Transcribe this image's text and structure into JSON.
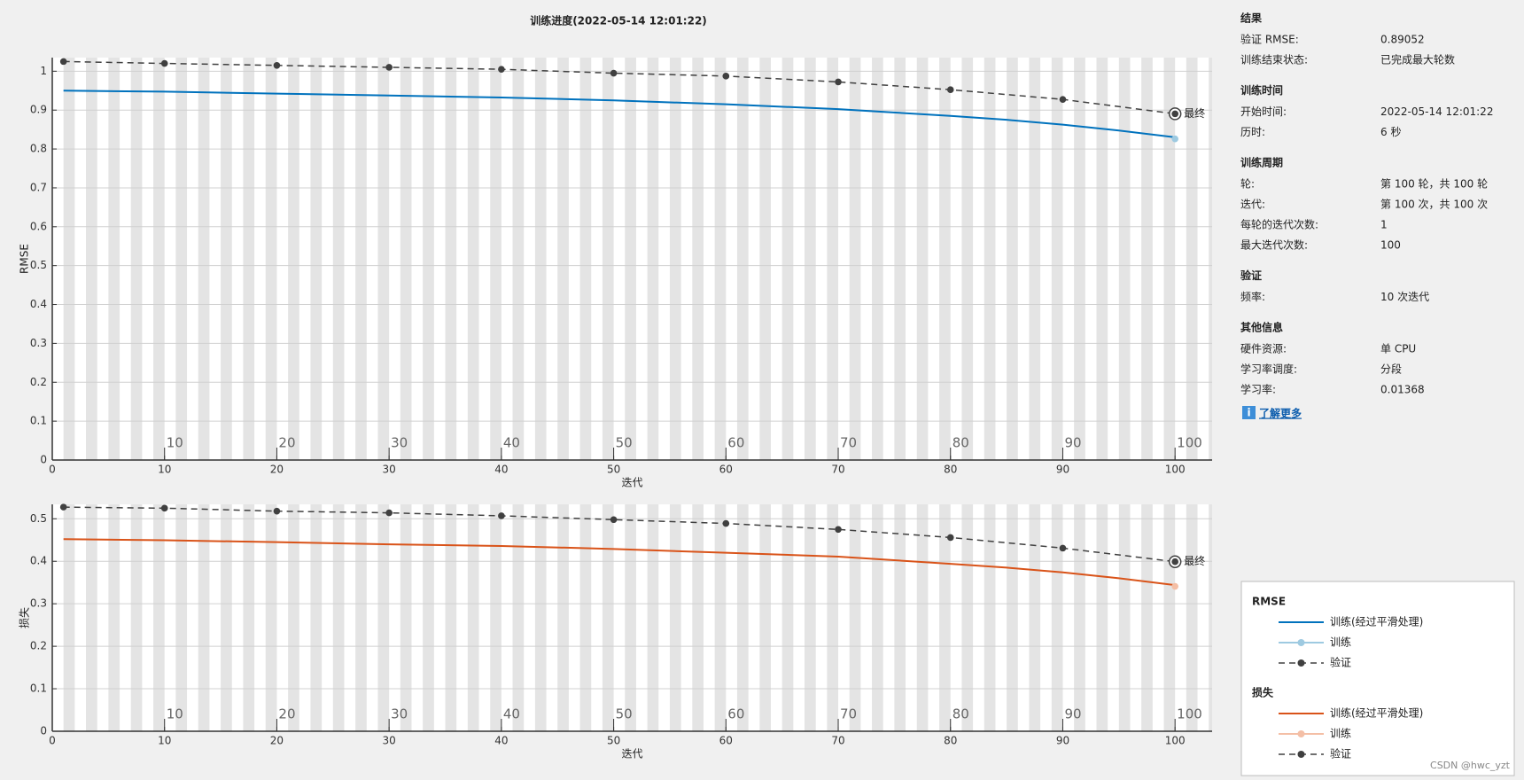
{
  "title": "训练进度(2022-05-14 12:01:22)",
  "chart_data": [
    {
      "type": "line",
      "xlabel": "迭代",
      "ylabel": "RMSE",
      "xlim": [
        0,
        103.3
      ],
      "ylim": [
        0,
        1.035
      ],
      "xticks": [
        0,
        10,
        20,
        30,
        40,
        50,
        60,
        70,
        80,
        90,
        100
      ],
      "yticks": [
        0,
        0.1,
        0.2,
        0.3,
        0.4,
        0.5,
        0.6,
        0.7,
        0.8,
        0.9,
        1
      ],
      "epoch_ticks": [
        10,
        20,
        30,
        40,
        50,
        60,
        70,
        80,
        90,
        100
      ],
      "grid": true,
      "final_label": "最终",
      "series": [
        {
          "name": "训练(经过平滑处理)",
          "color": "#0072bd",
          "line_style": "solid",
          "markers": false,
          "x": [
            1,
            10,
            20,
            30,
            40,
            50,
            60,
            70,
            80,
            85,
            90,
            95,
            100
          ],
          "values": [
            0.95,
            0.9475,
            0.9425,
            0.9375,
            0.9325,
            0.925,
            0.915,
            0.9025,
            0.885,
            0.875,
            0.8625,
            0.8475,
            0.83
          ]
        },
        {
          "name": "训练",
          "color": "#9ecae1",
          "line_style": "solid",
          "markers": true,
          "x": [
            100
          ],
          "values": [
            0.826
          ]
        },
        {
          "name": "验证",
          "color": "#404040",
          "line_style": "dashed",
          "markers": true,
          "x": [
            1,
            10,
            20,
            30,
            40,
            50,
            60,
            70,
            80,
            90,
            100
          ],
          "values": [
            1.025,
            1.02,
            1.015,
            1.01,
            1.005,
            0.995,
            0.9875,
            0.9725,
            0.9525,
            0.9275,
            0.89052
          ]
        }
      ]
    },
    {
      "type": "line",
      "xlabel": "迭代",
      "ylabel": "损失",
      "xlim": [
        0,
        103.3
      ],
      "ylim": [
        0,
        0.534
      ],
      "xticks": [
        0,
        10,
        20,
        30,
        40,
        50,
        60,
        70,
        80,
        90,
        100
      ],
      "yticks": [
        0,
        0.1,
        0.2,
        0.3,
        0.4,
        0.5
      ],
      "epoch_ticks": [
        10,
        20,
        30,
        40,
        50,
        60,
        70,
        80,
        90,
        100
      ],
      "grid": true,
      "final_label": "最终",
      "series": [
        {
          "name": "训练(经过平滑处理)",
          "color": "#d95319",
          "line_style": "solid",
          "markers": false,
          "x": [
            1,
            10,
            20,
            30,
            40,
            50,
            60,
            70,
            80,
            85,
            90,
            95,
            100
          ],
          "values": [
            0.452,
            0.4495,
            0.445,
            0.44,
            0.436,
            0.429,
            0.42,
            0.411,
            0.394,
            0.385,
            0.374,
            0.36,
            0.344
          ]
        },
        {
          "name": "训练",
          "color": "#f4bfa6",
          "line_style": "solid",
          "markers": true,
          "x": [
            100
          ],
          "values": [
            0.341
          ]
        },
        {
          "name": "验证",
          "color": "#404040",
          "line_style": "dashed",
          "markers": true,
          "x": [
            1,
            10,
            20,
            30,
            40,
            50,
            60,
            70,
            80,
            90,
            100
          ],
          "values": [
            0.5275,
            0.525,
            0.518,
            0.514,
            0.507,
            0.498,
            0.489,
            0.475,
            0.456,
            0.431,
            0.399
          ]
        }
      ]
    }
  ],
  "info": {
    "sections": [
      {
        "title": "结果",
        "rows": [
          [
            "验证 RMSE:",
            "0.89052"
          ],
          [
            "训练结束状态:",
            "已完成最大轮数"
          ]
        ]
      },
      {
        "title": "训练时间",
        "rows": [
          [
            "开始时间:",
            "2022-05-14 12:01:22"
          ],
          [
            "历时:",
            "6 秒"
          ]
        ]
      },
      {
        "title": "训练周期",
        "rows": [
          [
            "轮:",
            "第 100 轮，共 100 轮"
          ],
          [
            "迭代:",
            "第 100 次，共 100 次"
          ],
          [
            "每轮的迭代次数:",
            "1"
          ],
          [
            "最大迭代次数:",
            "100"
          ]
        ]
      },
      {
        "title": "验证",
        "rows": [
          [
            "频率:",
            "10 次迭代"
          ]
        ]
      },
      {
        "title": "其他信息",
        "rows": [
          [
            "硬件资源:",
            "单 CPU"
          ],
          [
            "学习率调度:",
            "分段"
          ],
          [
            "学习率:",
            "0.01368"
          ]
        ]
      }
    ],
    "link": "了解更多"
  },
  "watermark": "CSDN @hwc_yzt"
}
